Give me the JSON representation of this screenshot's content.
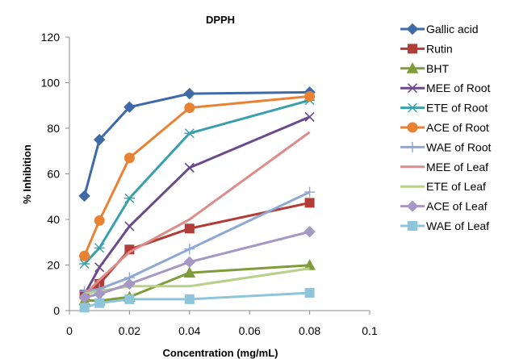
{
  "chart_data": {
    "type": "scatter",
    "title": "DPPH",
    "xlabel": "Concentration (mg/mL)",
    "ylabel": "% Inhibition",
    "xlim": [
      0,
      0.1
    ],
    "ylim": [
      0,
      120
    ],
    "xticks": [
      "0",
      "0.02",
      "0.04",
      "0.06",
      "0.08",
      "0.1"
    ],
    "yticks": [
      "0",
      "20",
      "40",
      "60",
      "80",
      "100",
      "120"
    ],
    "grid": false,
    "legend_position": "right",
    "x": [
      0.005,
      0.01,
      0.02,
      0.04,
      0.08
    ],
    "series": [
      {
        "name": "Gallic acid",
        "values": [
          50.3,
          75,
          89.3,
          95.2,
          95.8
        ],
        "color": "#3f6aa8",
        "marker": "diamond"
      },
      {
        "name": "Rutin",
        "values": [
          7,
          11.7,
          26.8,
          36,
          47.3
        ],
        "color": "#b23c36",
        "marker": "square"
      },
      {
        "name": "BHT",
        "values": [
          4.5,
          4.3,
          6,
          16.6,
          19.9
        ],
        "color": "#7f9c3a",
        "marker": "triangle"
      },
      {
        "name": "MEE of Root",
        "values": [
          7,
          19,
          37,
          62.7,
          85
        ],
        "color": "#6b4a8c",
        "marker": "x"
      },
      {
        "name": "ETE of Root",
        "values": [
          20.5,
          27.5,
          49.3,
          77.8,
          92.3
        ],
        "color": "#3aa0ad",
        "marker": "asterisk"
      },
      {
        "name": "ACE of Root",
        "values": [
          24,
          39.5,
          67,
          89,
          94
        ],
        "color": "#e98233",
        "marker": "circle"
      },
      {
        "name": "WAE of Root",
        "values": [
          8.5,
          9.5,
          14.5,
          27,
          52
        ],
        "color": "#8ea8d2",
        "marker": "plus"
      },
      {
        "name": "MEE of Leaf",
        "values": [
          7,
          13.5,
          25.7,
          40,
          78.3
        ],
        "color": "#dc8c89",
        "marker": "none"
      },
      {
        "name": "ETE of Leaf",
        "values": [
          7.5,
          8.5,
          10.7,
          10.7,
          18.5
        ],
        "color": "#b8d08a",
        "marker": "none"
      },
      {
        "name": "ACE of Leaf",
        "values": [
          5.8,
          7.3,
          11.7,
          21.3,
          34.6
        ],
        "color": "#a698c5",
        "marker": "diamond"
      },
      {
        "name": "WAE of Leaf",
        "values": [
          1.3,
          3.3,
          5,
          5,
          7.8
        ],
        "color": "#8ec5db",
        "marker": "square"
      }
    ]
  }
}
